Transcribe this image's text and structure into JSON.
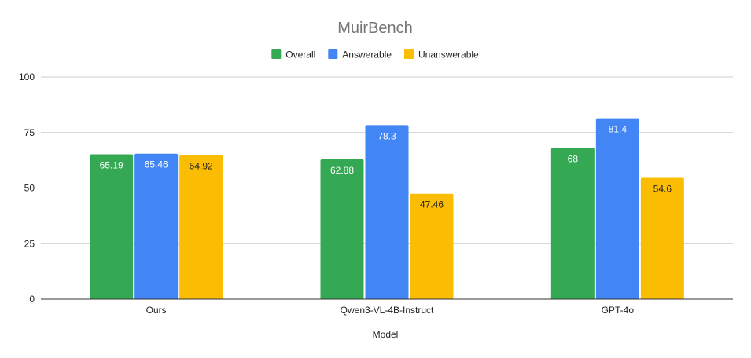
{
  "chart_data": {
    "type": "bar",
    "title": "MuirBench",
    "xlabel": "Model",
    "ylabel": "",
    "ylim": [
      0,
      100
    ],
    "yticks": [
      0,
      25,
      50,
      75,
      100
    ],
    "grid": true,
    "legend_position": "top",
    "categories": [
      "Ours",
      "Qwen3-VL-4B-Instruct",
      "GPT-4o"
    ],
    "series": [
      {
        "name": "Overall",
        "values": [
          65.19,
          62.88,
          68
        ],
        "labels": [
          "65.19",
          "62.88",
          "68"
        ],
        "color": "#34a853",
        "label_color": "#ffffff"
      },
      {
        "name": "Answerable",
        "values": [
          65.46,
          78.3,
          81.4
        ],
        "labels": [
          "65.46",
          "78.3",
          "81.4"
        ],
        "color": "#4285f4",
        "label_color": "#ffffff"
      },
      {
        "name": "Unanswerable",
        "values": [
          64.92,
          47.46,
          54.6
        ],
        "labels": [
          "64.92",
          "47.46",
          "54.6"
        ],
        "color": "#fbbc04",
        "label_color": "#222222"
      }
    ]
  }
}
